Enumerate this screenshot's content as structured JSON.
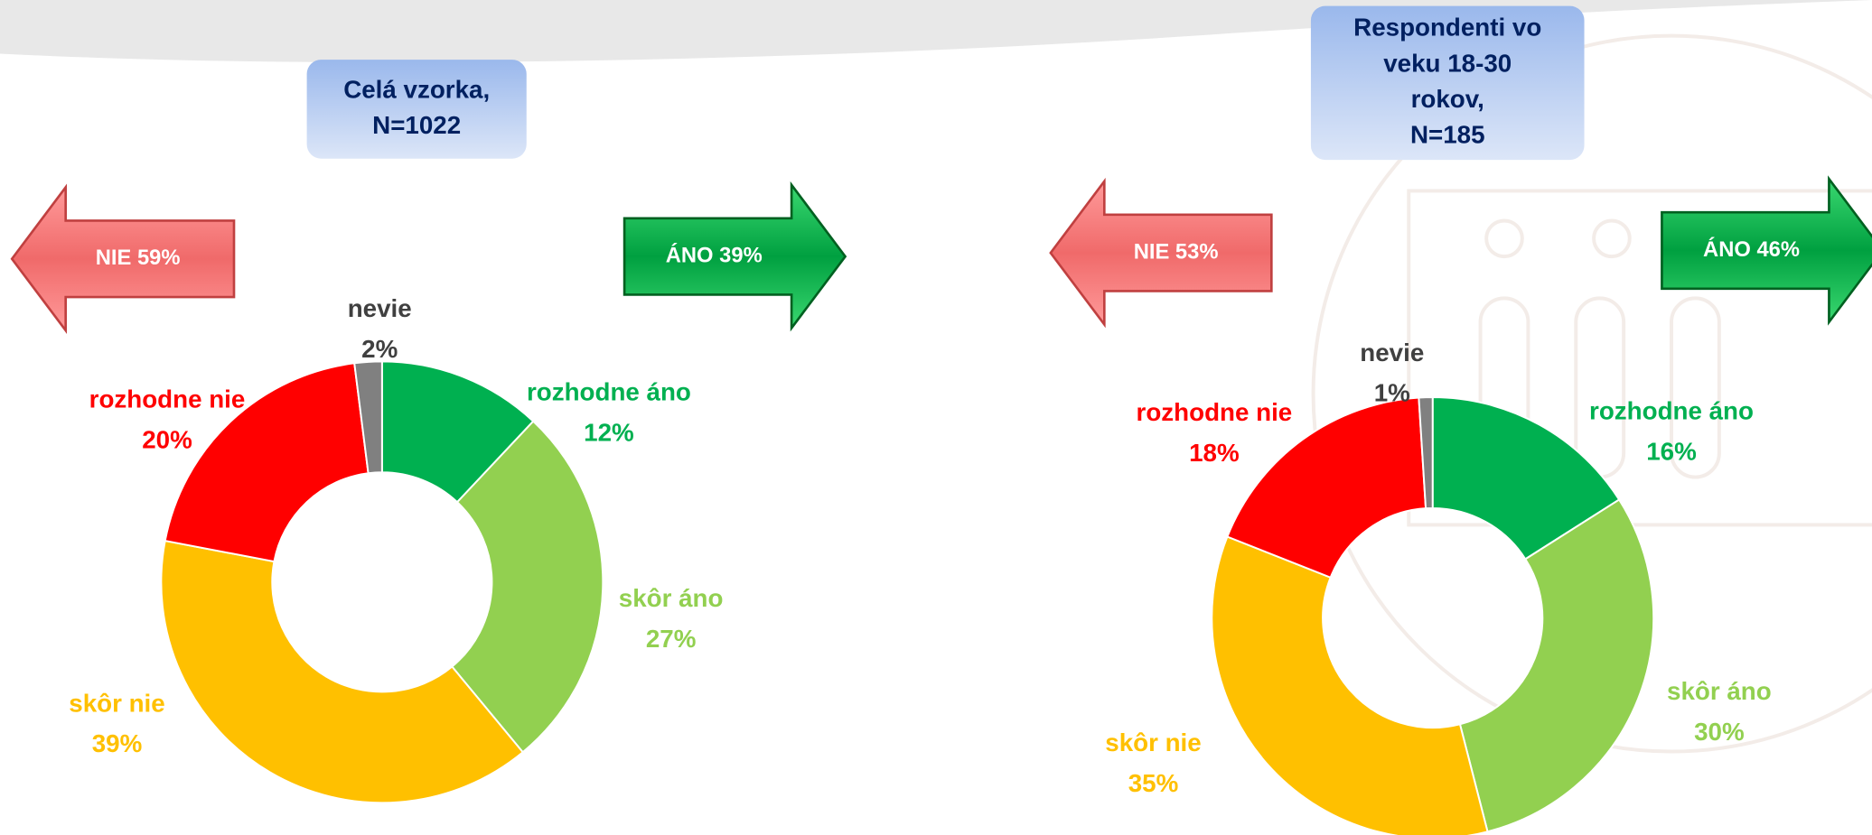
{
  "chart_data": [
    {
      "type": "pie",
      "donut": true,
      "title": [
        "Celá vzorka,",
        "N=1022"
      ],
      "categories": [
        "rozhodne áno",
        "skôr áno",
        "skôr nie",
        "rozhodne nie",
        "nevie"
      ],
      "values": [
        12,
        27,
        39,
        20,
        2
      ],
      "value_labels": [
        "12%",
        "27%",
        "39%",
        "20%",
        "2%"
      ],
      "colors": [
        "#00b050",
        "#92d050",
        "#ffc000",
        "#ff0000",
        "#808080"
      ],
      "annotations": [
        "NIE 59%",
        "ÁNO 39%"
      ]
    },
    {
      "type": "pie",
      "donut": true,
      "title": [
        "Respondenti vo",
        "veku 18-30",
        "rokov,",
        "N=185"
      ],
      "categories": [
        "rozhodne áno",
        "skôr áno",
        "skôr nie",
        "rozhodne nie",
        "nevie"
      ],
      "values": [
        16,
        30,
        35,
        18,
        1
      ],
      "value_labels": [
        "16%",
        "30%",
        "35%",
        "18%",
        "1%"
      ],
      "colors": [
        "#00b050",
        "#92d050",
        "#ffc000",
        "#ff0000",
        "#808080"
      ],
      "annotations": [
        "NIE 53%",
        "ÁNO 46%"
      ]
    }
  ]
}
